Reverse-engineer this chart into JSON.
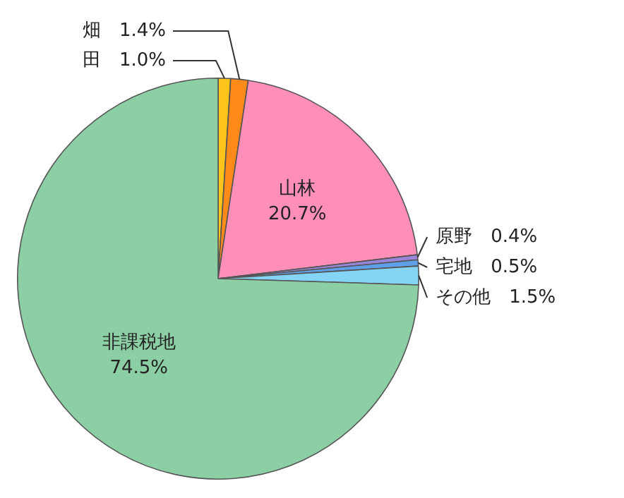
{
  "chart_data": {
    "type": "pie",
    "categories": [
      "田",
      "畑",
      "山林",
      "原野",
      "宅地",
      "その他",
      "非課税地"
    ],
    "values": [
      1.0,
      1.4,
      20.7,
      0.4,
      0.5,
      1.5,
      74.5
    ],
    "colors": [
      "#ffc41a",
      "#ff8a1a",
      "#ff8fb8",
      "#9a86d8",
      "#5f9fe8",
      "#84d4f6",
      "#8ccfa4"
    ],
    "value_labels": [
      "1.0%",
      "1.4%",
      "20.7%",
      "0.4%",
      "0.5%",
      "1.5%",
      "74.5%"
    ]
  }
}
